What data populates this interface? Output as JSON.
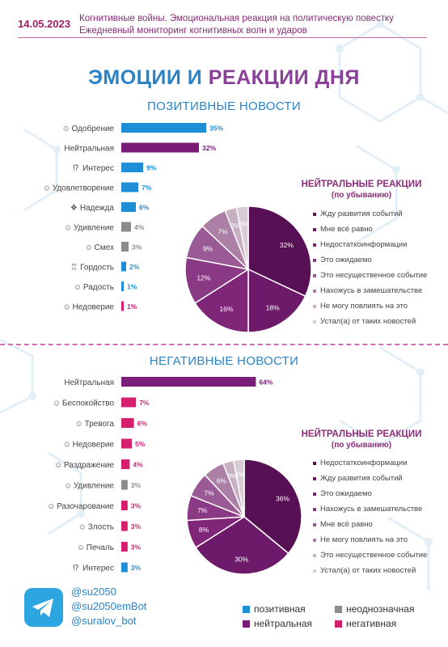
{
  "header": {
    "date": "14.05.2023",
    "line1": "Когнитивные войны. Эмоциональная реакция на политическую повестку",
    "line2": "Ежедневный мониторинг когнитивных волн и ударов"
  },
  "title": {
    "part1": "ЭМОЦИИ И ",
    "part2": "РЕАКЦИИ ДНЯ"
  },
  "colors": {
    "positive": "#1e8fd6",
    "neutral": "#7a1d79",
    "ambiguous": "#8c8c8c",
    "negative": "#d61f6f"
  },
  "chart_data": [
    {
      "type": "bar",
      "title": "ПОЗИТИВНЫЕ НОВОСТИ",
      "orientation": "horizontal",
      "categories": [
        "Одобрение",
        "Нейтральная",
        "Интерес",
        "Удовлетворение",
        "Надежда",
        "Удивление",
        "Смех",
        "Гордость",
        "Радость",
        "Недоверие"
      ],
      "icons": [
        "☺",
        "",
        "⁉",
        "☺",
        "❖",
        "☺",
        "☺",
        "♖",
        "☺",
        "☺"
      ],
      "values": [
        35,
        32,
        9,
        7,
        6,
        4,
        3,
        2,
        1,
        1
      ],
      "labels": [
        "35%",
        "32%",
        "9%",
        "7%",
        "6%",
        "4%",
        "3%",
        "2%",
        "1%",
        "1%"
      ],
      "classes": [
        "positive",
        "neutral",
        "positive",
        "positive",
        "positive",
        "ambiguous",
        "ambiguous",
        "positive",
        "positive",
        "negative"
      ]
    },
    {
      "type": "pie",
      "legend_title": "НЕЙТРАЛЬНЫЕ РЕАКЦИИ",
      "legend_subtitle": "(по убыванию)",
      "categories": [
        "Жду развития событий",
        "Мне всё равно",
        "Недостаткоинформации",
        "Это ожидаемо",
        "Это несущественное событие",
        "Нахожусь в замешательстве",
        "Не могу повлиять на это",
        "Устал(а) от таких новостей"
      ],
      "values": [
        32,
        18,
        16,
        12,
        9,
        7,
        3,
        3
      ],
      "labels": [
        "32%",
        "18%",
        "16%",
        "12%",
        "9%",
        "7%",
        "3%",
        "3%"
      ],
      "colors": [
        "#581054",
        "#6e1a6a",
        "#7f2679",
        "#8a3a85",
        "#9a5a95",
        "#ab7fa6",
        "#c6b0c2",
        "#d9ccd6"
      ]
    },
    {
      "type": "bar",
      "title": "НЕГАТИВНЫЕ НОВОСТИ",
      "orientation": "horizontal",
      "categories": [
        "Нейтральная",
        "Беспокойство",
        "Тревога",
        "Недоверие",
        "Раздражение",
        "Удивление",
        "Разочарование",
        "Злость",
        "Печаль",
        "Интерес"
      ],
      "icons": [
        "",
        "☺",
        "☺",
        "☺",
        "☺",
        "☺",
        "☺",
        "☺",
        "☺",
        "⁉"
      ],
      "values": [
        64,
        7,
        6,
        5,
        4,
        3,
        3,
        3,
        3,
        3
      ],
      "labels": [
        "64%",
        "7%",
        "6%",
        "5%",
        "4%",
        "3%",
        "3%",
        "3%",
        "3%",
        "3%"
      ],
      "classes": [
        "neutral",
        "negative",
        "negative",
        "negative",
        "negative",
        "ambiguous",
        "negative",
        "negative",
        "negative",
        "positive"
      ]
    },
    {
      "type": "pie",
      "legend_title": "НЕЙТРАЛЬНЫЕ РЕАКЦИИ",
      "legend_subtitle": "(по убыванию)",
      "categories": [
        "Недостаткоинформации",
        "Жду развития событий",
        "Это ожидаемо",
        "Нахожусь в замешательстве",
        "Мне всё равно",
        "Не могу повлиять на это",
        "Это несущественное событие",
        "Устал(а) от таких новостей"
      ],
      "values": [
        36,
        30,
        8,
        7,
        7,
        6,
        3,
        3
      ],
      "labels": [
        "36%",
        "30%",
        "8%",
        "7%",
        "7%",
        "6%",
        "3%",
        "3%"
      ],
      "colors": [
        "#581054",
        "#6e1a6a",
        "#7f2679",
        "#8a3a85",
        "#9a5a95",
        "#ab7fa6",
        "#c6b0c2",
        "#d9ccd6"
      ]
    }
  ],
  "footer": {
    "handles": [
      "@su2050",
      "@su2050emBot",
      "@suralov_bot"
    ],
    "legend": [
      {
        "label": "позитивная",
        "color": "#1e8fd6"
      },
      {
        "label": "неоднозначная",
        "color": "#8c8c8c"
      },
      {
        "label": "нейтральная",
        "color": "#7a1d79"
      },
      {
        "label": "негативная",
        "color": "#d61f6f"
      }
    ]
  }
}
